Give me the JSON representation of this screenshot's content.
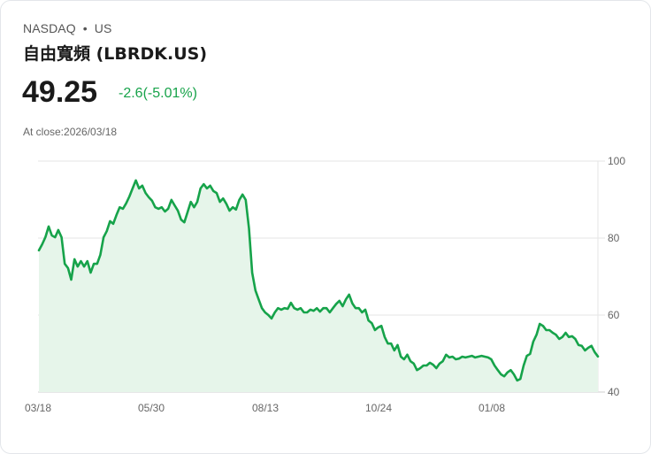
{
  "header": {
    "exchange": "NASDAQ",
    "separator": "•",
    "region": "US",
    "title": "自由寬頻 (LBRDK.US)",
    "price": "49.25",
    "change": "-2.6(-5.01%)",
    "close_label": "At close:2026/03/18"
  },
  "colors": {
    "line": "#16a34a",
    "fill": "#e6f5ea",
    "change": "#17a34a",
    "grid": "#e5e5e5"
  },
  "chart_data": {
    "type": "area",
    "title": "",
    "xlabel": "",
    "ylabel": "",
    "ylim": [
      40,
      100
    ],
    "grid": true,
    "legend": null,
    "y_ticks": [
      "100",
      "80",
      "60",
      "40"
    ],
    "x_ticks": [
      "03/18",
      "05/30",
      "08/13",
      "10/24",
      "01/08"
    ],
    "series": [
      {
        "name": "LBRDK.US",
        "values": [
          76.8,
          78.4,
          80.2,
          83.0,
          80.7,
          80.2,
          82.1,
          80.2,
          73.3,
          72.2,
          69.2,
          74.5,
          72.6,
          74.0,
          72.6,
          74.0,
          71.0,
          73.3,
          73.3,
          75.6,
          80.2,
          81.8,
          84.4,
          83.7,
          86.0,
          88.0,
          87.6,
          89.0,
          90.8,
          92.9,
          95.0,
          92.9,
          93.6,
          91.7,
          90.6,
          89.7,
          88.0,
          87.6,
          88.0,
          86.9,
          87.6,
          89.9,
          88.5,
          87.1,
          84.8,
          84.1,
          86.7,
          89.4,
          88.0,
          89.4,
          92.9,
          94.0,
          92.9,
          93.6,
          92.2,
          91.7,
          89.4,
          90.3,
          88.9,
          87.1,
          88.0,
          87.4,
          89.9,
          91.3,
          89.9,
          82.5,
          71.0,
          66.4,
          64.1,
          61.8,
          60.7,
          60.0,
          59.1,
          60.7,
          61.8,
          61.4,
          61.8,
          61.6,
          63.2,
          61.8,
          61.4,
          61.8,
          60.7,
          60.7,
          61.4,
          61.1,
          61.8,
          60.9,
          61.8,
          61.8,
          60.7,
          61.8,
          62.9,
          63.7,
          62.3,
          64.1,
          65.3,
          63.0,
          61.8,
          61.8,
          60.7,
          61.4,
          58.6,
          57.9,
          56.1,
          56.8,
          57.2,
          54.3,
          52.6,
          52.6,
          50.8,
          52.2,
          49.2,
          48.5,
          49.7,
          48.0,
          47.4,
          45.7,
          46.2,
          46.9,
          46.9,
          47.6,
          47.1,
          46.2,
          47.4,
          48.0,
          49.7,
          49.0,
          49.2,
          48.5,
          48.7,
          49.2,
          49.0,
          49.2,
          49.4,
          49.0,
          49.2,
          49.4,
          49.2,
          49.0,
          48.5,
          46.9,
          45.7,
          44.6,
          44.1,
          45.1,
          45.7,
          44.6,
          43.0,
          43.4,
          46.9,
          49.4,
          49.9,
          53.1,
          54.9,
          57.7,
          57.2,
          56.1,
          56.1,
          55.4,
          54.9,
          53.8,
          54.3,
          55.4,
          54.3,
          54.5,
          53.8,
          52.2,
          52.0,
          50.8,
          51.5,
          52.0,
          50.4,
          49.25
        ]
      }
    ]
  }
}
